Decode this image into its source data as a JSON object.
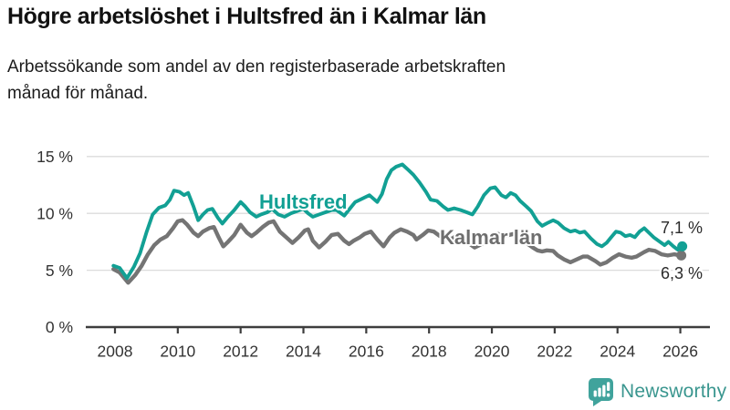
{
  "header": {
    "title": "Högre arbetslöshet i Hultsfred än i Kalmar län",
    "subtitle": "Arbetssökande som andel av den registerbaserade arbetskraften månad för månad."
  },
  "footer": {
    "brand": "Newsworthy"
  },
  "colors": {
    "hultsfred": "#12a094",
    "kalmar": "#747474",
    "kalmar_label": "#6e6e6e",
    "axis": "#3d3d3d",
    "grid": "#dcdcdc",
    "tick_text": "#333333",
    "end_label_text": "#2b2b2b",
    "logo_icon": "#40a39c",
    "logo_text": "#3a968f",
    "background": "#ffffff"
  },
  "chart_data": {
    "type": "line",
    "title": "Högre arbetslöshet i Hultsfred än i Kalmar län",
    "subtitle": "Arbetssökande som andel av den registerbaserade arbetskraften månad för månad.",
    "xlabel": "",
    "ylabel": "",
    "legend_position": "inline-labels-on-lines",
    "grid": true,
    "x_axis": {
      "ticks": [
        2008,
        2010,
        2012,
        2014,
        2016,
        2018,
        2020,
        2022,
        2024,
        2026
      ],
      "range": [
        2007.9,
        2026.4
      ]
    },
    "y_axis": {
      "ticks": [
        0,
        5,
        10,
        15
      ],
      "tick_suffix": " %",
      "range": [
        0,
        15.8
      ]
    },
    "series": [
      {
        "name": "Hultsfred",
        "color": "#12a094",
        "end_label": "7,1 %",
        "end_value": 7.1,
        "points": [
          [
            2007.95,
            5.4
          ],
          [
            2008.15,
            5.2
          ],
          [
            2008.38,
            4.3
          ],
          [
            2008.6,
            5.3
          ],
          [
            2008.8,
            6.5
          ],
          [
            2009.0,
            8.3
          ],
          [
            2009.2,
            9.9
          ],
          [
            2009.4,
            10.5
          ],
          [
            2009.6,
            10.7
          ],
          [
            2009.75,
            11.2
          ],
          [
            2009.88,
            12.0
          ],
          [
            2010.05,
            11.9
          ],
          [
            2010.2,
            11.6
          ],
          [
            2010.33,
            11.8
          ],
          [
            2010.5,
            10.6
          ],
          [
            2010.65,
            9.4
          ],
          [
            2010.8,
            9.9
          ],
          [
            2010.95,
            10.3
          ],
          [
            2011.1,
            10.4
          ],
          [
            2011.28,
            9.6
          ],
          [
            2011.42,
            9.1
          ],
          [
            2011.6,
            9.7
          ],
          [
            2011.8,
            10.3
          ],
          [
            2012.0,
            11.0
          ],
          [
            2012.15,
            10.6
          ],
          [
            2012.3,
            10.1
          ],
          [
            2012.5,
            9.7
          ],
          [
            2012.65,
            9.9
          ],
          [
            2012.85,
            10.1
          ],
          [
            2013.0,
            10.4
          ],
          [
            2013.2,
            9.9
          ],
          [
            2013.4,
            9.7
          ],
          [
            2013.6,
            10.0
          ],
          [
            2013.8,
            10.2
          ],
          [
            2014.0,
            10.4
          ],
          [
            2014.15,
            10.0
          ],
          [
            2014.3,
            9.7
          ],
          [
            2014.5,
            9.9
          ],
          [
            2014.7,
            10.1
          ],
          [
            2014.9,
            10.3
          ],
          [
            2015.05,
            10.3
          ],
          [
            2015.3,
            9.8
          ],
          [
            2015.5,
            10.5
          ],
          [
            2015.65,
            11.0
          ],
          [
            2015.8,
            11.2
          ],
          [
            2015.95,
            11.4
          ],
          [
            2016.1,
            11.6
          ],
          [
            2016.35,
            11.0
          ],
          [
            2016.5,
            11.7
          ],
          [
            2016.65,
            13.0
          ],
          [
            2016.8,
            13.8
          ],
          [
            2016.95,
            14.1
          ],
          [
            2017.15,
            14.3
          ],
          [
            2017.35,
            13.8
          ],
          [
            2017.5,
            13.4
          ],
          [
            2017.7,
            12.7
          ],
          [
            2017.9,
            11.9
          ],
          [
            2018.05,
            11.2
          ],
          [
            2018.25,
            11.1
          ],
          [
            2018.45,
            10.6
          ],
          [
            2018.6,
            10.3
          ],
          [
            2018.8,
            10.45
          ],
          [
            2019.0,
            10.3
          ],
          [
            2019.2,
            10.1
          ],
          [
            2019.38,
            9.9
          ],
          [
            2019.55,
            10.6
          ],
          [
            2019.75,
            11.6
          ],
          [
            2019.95,
            12.2
          ],
          [
            2020.1,
            12.3
          ],
          [
            2020.3,
            11.6
          ],
          [
            2020.45,
            11.4
          ],
          [
            2020.6,
            11.8
          ],
          [
            2020.75,
            11.6
          ],
          [
            2020.9,
            11.1
          ],
          [
            2021.1,
            10.6
          ],
          [
            2021.25,
            10.2
          ],
          [
            2021.45,
            9.3
          ],
          [
            2021.6,
            8.9
          ],
          [
            2021.8,
            9.2
          ],
          [
            2021.95,
            9.4
          ],
          [
            2022.1,
            9.2
          ],
          [
            2022.3,
            8.7
          ],
          [
            2022.5,
            8.4
          ],
          [
            2022.65,
            8.5
          ],
          [
            2022.8,
            8.3
          ],
          [
            2022.95,
            8.4
          ],
          [
            2023.15,
            7.8
          ],
          [
            2023.35,
            7.3
          ],
          [
            2023.5,
            7.1
          ],
          [
            2023.65,
            7.4
          ],
          [
            2023.8,
            7.9
          ],
          [
            2023.95,
            8.4
          ],
          [
            2024.1,
            8.3
          ],
          [
            2024.25,
            8.0
          ],
          [
            2024.4,
            8.1
          ],
          [
            2024.55,
            7.9
          ],
          [
            2024.7,
            8.4
          ],
          [
            2024.85,
            8.7
          ],
          [
            2025.0,
            8.3
          ],
          [
            2025.15,
            7.9
          ],
          [
            2025.35,
            7.5
          ],
          [
            2025.5,
            7.2
          ],
          [
            2025.62,
            7.5
          ],
          [
            2025.78,
            7.1
          ],
          [
            2025.92,
            6.8
          ],
          [
            2026.06,
            7.1
          ]
        ]
      },
      {
        "name": "Kalmar län",
        "color": "#747474",
        "end_label": "6,3 %",
        "end_value": 6.3,
        "points": [
          [
            2007.95,
            5.1
          ],
          [
            2008.15,
            4.8
          ],
          [
            2008.42,
            3.9
          ],
          [
            2008.65,
            4.6
          ],
          [
            2008.85,
            5.4
          ],
          [
            2009.05,
            6.4
          ],
          [
            2009.25,
            7.2
          ],
          [
            2009.45,
            7.7
          ],
          [
            2009.65,
            8.0
          ],
          [
            2009.85,
            8.7
          ],
          [
            2010.0,
            9.3
          ],
          [
            2010.15,
            9.4
          ],
          [
            2010.3,
            9.0
          ],
          [
            2010.5,
            8.3
          ],
          [
            2010.65,
            8.0
          ],
          [
            2010.8,
            8.4
          ],
          [
            2011.0,
            8.7
          ],
          [
            2011.15,
            8.8
          ],
          [
            2011.3,
            7.9
          ],
          [
            2011.45,
            7.1
          ],
          [
            2011.6,
            7.5
          ],
          [
            2011.8,
            8.1
          ],
          [
            2012.0,
            9.0
          ],
          [
            2012.2,
            8.3
          ],
          [
            2012.35,
            8.0
          ],
          [
            2012.5,
            8.3
          ],
          [
            2012.7,
            8.8
          ],
          [
            2012.9,
            9.2
          ],
          [
            2013.05,
            9.3
          ],
          [
            2013.25,
            8.4
          ],
          [
            2013.45,
            7.9
          ],
          [
            2013.65,
            7.4
          ],
          [
            2013.85,
            7.9
          ],
          [
            2014.05,
            8.5
          ],
          [
            2014.15,
            8.6
          ],
          [
            2014.3,
            7.6
          ],
          [
            2014.5,
            7.0
          ],
          [
            2014.7,
            7.5
          ],
          [
            2014.9,
            8.1
          ],
          [
            2015.1,
            8.2
          ],
          [
            2015.3,
            7.6
          ],
          [
            2015.45,
            7.3
          ],
          [
            2015.6,
            7.6
          ],
          [
            2015.8,
            7.9
          ],
          [
            2015.95,
            8.2
          ],
          [
            2016.15,
            8.4
          ],
          [
            2016.35,
            7.7
          ],
          [
            2016.55,
            7.1
          ],
          [
            2016.75,
            7.9
          ],
          [
            2016.9,
            8.3
          ],
          [
            2017.1,
            8.6
          ],
          [
            2017.3,
            8.4
          ],
          [
            2017.5,
            8.1
          ],
          [
            2017.6,
            7.7
          ],
          [
            2017.8,
            8.1
          ],
          [
            2017.97,
            8.5
          ],
          [
            2018.15,
            8.4
          ],
          [
            2018.35,
            8.0
          ],
          [
            2018.55,
            7.7
          ],
          [
            2018.75,
            7.8
          ],
          [
            2018.9,
            8.1
          ],
          [
            2019.05,
            8.0
          ],
          [
            2019.25,
            7.4
          ],
          [
            2019.45,
            7.0
          ],
          [
            2019.6,
            7.2
          ],
          [
            2019.8,
            7.5
          ],
          [
            2020.0,
            7.9
          ],
          [
            2020.2,
            8.2
          ],
          [
            2020.35,
            8.0
          ],
          [
            2020.55,
            8.1
          ],
          [
            2020.7,
            8.2
          ],
          [
            2020.85,
            8.0
          ],
          [
            2021.0,
            7.7
          ],
          [
            2021.15,
            7.3
          ],
          [
            2021.3,
            7.0
          ],
          [
            2021.45,
            6.75
          ],
          [
            2021.6,
            6.65
          ],
          [
            2021.75,
            6.75
          ],
          [
            2021.95,
            6.7
          ],
          [
            2022.1,
            6.3
          ],
          [
            2022.3,
            5.95
          ],
          [
            2022.5,
            5.7
          ],
          [
            2022.7,
            5.95
          ],
          [
            2022.9,
            6.2
          ],
          [
            2023.05,
            6.2
          ],
          [
            2023.3,
            5.8
          ],
          [
            2023.45,
            5.5
          ],
          [
            2023.65,
            5.7
          ],
          [
            2023.85,
            6.1
          ],
          [
            2024.05,
            6.4
          ],
          [
            2024.25,
            6.2
          ],
          [
            2024.45,
            6.1
          ],
          [
            2024.6,
            6.2
          ],
          [
            2024.85,
            6.6
          ],
          [
            2025.0,
            6.8
          ],
          [
            2025.2,
            6.7
          ],
          [
            2025.4,
            6.4
          ],
          [
            2025.6,
            6.3
          ],
          [
            2025.8,
            6.4
          ],
          [
            2026.03,
            6.3
          ]
        ]
      }
    ]
  }
}
